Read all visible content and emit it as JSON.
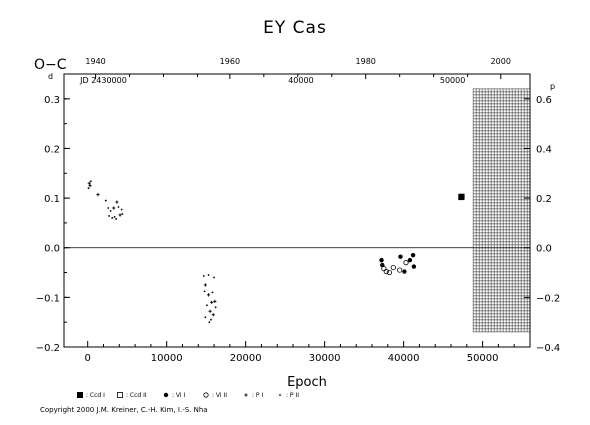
{
  "chart_data": {
    "type": "scatter",
    "title": "EY Cas",
    "xlabel": "Epoch",
    "ylabel": "O−C",
    "ylabel_unit": "d",
    "right_axis_unit": "p",
    "xlim": [
      -3000,
      56000
    ],
    "ylim": [
      -0.2,
      0.35
    ],
    "right_ylim": [
      -0.4,
      0.7
    ],
    "x_ticks": [
      {
        "value": 0,
        "label": "0"
      },
      {
        "value": 10000,
        "label": "10000"
      },
      {
        "value": 20000,
        "label": "20000"
      },
      {
        "value": 30000,
        "label": "30000"
      },
      {
        "value": 40000,
        "label": "40000"
      },
      {
        "value": 50000,
        "label": "50000"
      }
    ],
    "y_ticks": [
      {
        "value": -0.2,
        "label": "−0.2"
      },
      {
        "value": -0.1,
        "label": "−0.1"
      },
      {
        "value": 0.0,
        "label": "0.0"
      },
      {
        "value": 0.1,
        "label": "0.1"
      },
      {
        "value": 0.2,
        "label": "0.2"
      },
      {
        "value": 0.3,
        "label": "0.3"
      }
    ],
    "right_ticks": [
      {
        "value": -0.4,
        "label": "−0.4"
      },
      {
        "value": -0.2,
        "label": "−0.2"
      },
      {
        "value": 0.0,
        "label": "0.0"
      },
      {
        "value": 0.2,
        "label": "0.2"
      },
      {
        "value": 0.4,
        "label": "0.4"
      },
      {
        "value": 0.6,
        "label": "0.6"
      }
    ],
    "top_year_ticks": [
      {
        "year": 1940,
        "label": "1940",
        "epoch": 1000
      },
      {
        "year": 1960,
        "label": "1960",
        "epoch": 18000
      },
      {
        "year": 1980,
        "label": "1980",
        "epoch": 35200
      },
      {
        "year": 2000,
        "label": "2000",
        "epoch": 52300
      }
    ],
    "top_jd_labels": [
      {
        "label": "JD 2430000",
        "epoch": 2000
      },
      {
        "label": "40000",
        "epoch": 27000
      },
      {
        "label": "50000",
        "epoch": 46200
      }
    ],
    "grid_block": {
      "x_from": 48800,
      "x_to": 56000,
      "y_from": -0.17,
      "y_to": 0.32
    },
    "zero_line": 0.0,
    "series": [
      {
        "name": "Ccd I",
        "marker": "filled-square",
        "points": [
          [
            47300,
            0.102
          ]
        ]
      },
      {
        "name": "Ccd II",
        "marker": "open-square",
        "points": [
          [
            47350,
            0.103
          ]
        ]
      },
      {
        "name": "Vi I",
        "marker": "filled-circle",
        "points": [
          [
            37200,
            -0.025
          ],
          [
            37300,
            -0.035
          ],
          [
            39600,
            -0.018
          ],
          [
            40100,
            -0.048
          ],
          [
            40800,
            -0.025
          ],
          [
            41200,
            -0.015
          ],
          [
            41300,
            -0.038
          ]
        ]
      },
      {
        "name": "Vi II",
        "marker": "open-circle",
        "points": [
          [
            37500,
            -0.042
          ],
          [
            37800,
            -0.048
          ],
          [
            38200,
            -0.05
          ],
          [
            38700,
            -0.04
          ],
          [
            39500,
            -0.045
          ],
          [
            40300,
            -0.03
          ]
        ]
      },
      {
        "name": "P I",
        "marker": "plus",
        "points": [
          [
            200,
            0.13
          ],
          [
            300,
            0.125
          ],
          [
            1300,
            0.107
          ],
          [
            3300,
            0.08
          ],
          [
            3700,
            0.092
          ],
          [
            4100,
            0.066
          ],
          [
            14900,
            -0.075
          ],
          [
            15300,
            -0.095
          ],
          [
            15500,
            -0.128
          ],
          [
            15700,
            -0.11
          ],
          [
            15900,
            -0.135
          ],
          [
            16100,
            -0.108
          ]
        ]
      },
      {
        "name": "P II",
        "marker": "dot",
        "points": [
          [
            100,
            0.12
          ],
          [
            400,
            0.134
          ],
          [
            2300,
            0.095
          ],
          [
            2600,
            0.08
          ],
          [
            2700,
            0.064
          ],
          [
            2900,
            0.074
          ],
          [
            3100,
            0.06
          ],
          [
            3400,
            0.062
          ],
          [
            3600,
            0.058
          ],
          [
            3900,
            0.082
          ],
          [
            4300,
            0.077
          ],
          [
            4400,
            0.068
          ],
          [
            14700,
            -0.057
          ],
          [
            14800,
            -0.088
          ],
          [
            14900,
            -0.14
          ],
          [
            15100,
            -0.116
          ],
          [
            15300,
            -0.055
          ],
          [
            15400,
            -0.15
          ],
          [
            15600,
            -0.145
          ],
          [
            15800,
            -0.09
          ],
          [
            16000,
            -0.06
          ],
          [
            16200,
            -0.12
          ]
        ]
      }
    ],
    "legend": [
      {
        "marker": "filled-square",
        "label": ": Ccd I"
      },
      {
        "marker": "open-square",
        "label": ": Ccd II"
      },
      {
        "marker": "filled-circle",
        "label": ": Vi I"
      },
      {
        "marker": "open-circle",
        "label": ": Vi II"
      },
      {
        "marker": "plus",
        "label": ": P I"
      },
      {
        "marker": "dot",
        "label": ": P II"
      }
    ]
  },
  "copyright": "Copyright 2000 J.M. Kreiner, C.-H. Kim, I.-S. Nha"
}
